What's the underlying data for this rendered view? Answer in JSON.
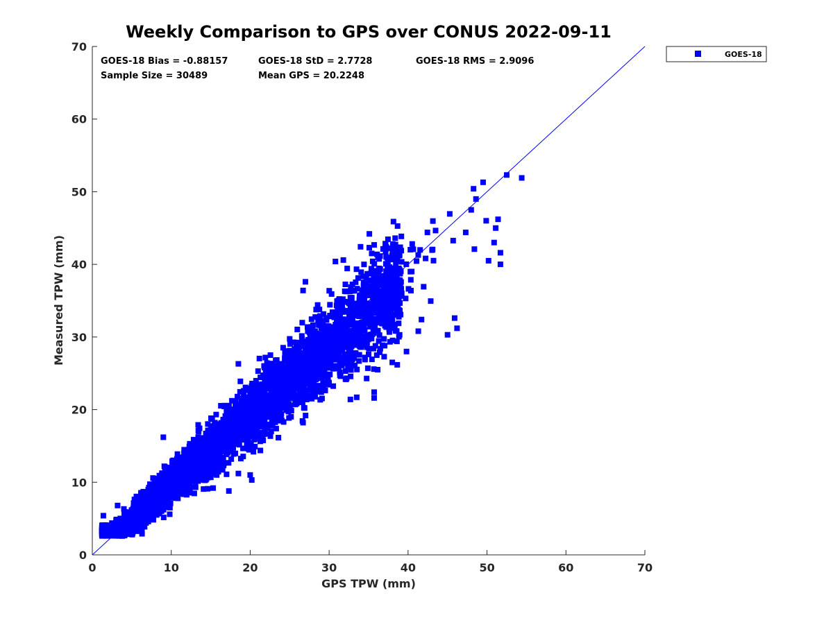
{
  "chart_data": {
    "type": "scatter",
    "title": "Weekly Comparison to GPS over CONUS 2022-09-11",
    "xlabel": "GPS TPW (mm)",
    "ylabel": "Measured TPW (mm)",
    "xlim": [
      0,
      70
    ],
    "ylim": [
      0,
      70
    ],
    "xticks": [
      "0",
      "10",
      "20",
      "30",
      "40",
      "50",
      "60",
      "70"
    ],
    "yticks": [
      "0",
      "10",
      "20",
      "30",
      "40",
      "50",
      "60",
      "70"
    ],
    "grid": false,
    "legend": {
      "position": "outside-top-right",
      "entries": [
        "GOES-18"
      ]
    },
    "reference_line": {
      "label": "1:1 line",
      "from": [
        0,
        0
      ],
      "to": [
        70,
        70
      ]
    },
    "stats": [
      "GOES-18 Bias = -0.88157",
      "GOES-18 StD = 2.7728",
      "GOES-18 RMS = 2.9096",
      "Sample Size = 30489",
      "Mean GPS = 20.2248"
    ],
    "series": [
      {
        "name": "GOES-18",
        "color": "#0000ff",
        "marker": "square",
        "sample_size": 30489,
        "bias": -0.88157,
        "std": 2.7728,
        "rms": 2.9096,
        "mean_x": 20.2248,
        "outliers": [
          [
            52.5,
            52.3
          ],
          [
            54.4,
            51.9
          ],
          [
            49.5,
            51.3
          ],
          [
            48.3,
            50.4
          ],
          [
            48.6,
            49.0
          ],
          [
            48.0,
            47.5
          ],
          [
            49.9,
            46.0
          ],
          [
            51.4,
            46.2
          ],
          [
            51.1,
            45.0
          ],
          [
            50.9,
            43.0
          ],
          [
            51.7,
            41.6
          ],
          [
            51.7,
            40.0
          ],
          [
            50.2,
            40.5
          ],
          [
            48.4,
            42.1
          ],
          [
            47.3,
            44.4
          ],
          [
            35.1,
            44.2
          ],
          [
            35.4,
            41.5
          ],
          [
            30.8,
            40.4
          ],
          [
            31.8,
            40.6
          ],
          [
            27.0,
            37.6
          ],
          [
            26.7,
            36.4
          ],
          [
            45.9,
            32.6
          ],
          [
            46.2,
            31.2
          ],
          [
            45.0,
            30.3
          ],
          [
            41.7,
            32.4
          ],
          [
            41.3,
            30.8
          ],
          [
            37.8,
            31.9
          ],
          [
            38.3,
            31.5
          ],
          [
            39.8,
            28.0
          ],
          [
            38.0,
            26.5
          ],
          [
            34.9,
            25.7
          ],
          [
            35.7,
            22.4
          ],
          [
            35.7,
            21.6
          ],
          [
            32.7,
            21.4
          ],
          [
            33.5,
            21.7
          ],
          [
            29.0,
            22.4
          ],
          [
            26.4,
            26.4
          ],
          [
            21.0,
            25.3
          ],
          [
            18.5,
            26.3
          ],
          [
            20.7,
            20.9
          ],
          [
            25.7,
            20.7
          ],
          [
            26.7,
            18.2
          ],
          [
            18.5,
            11.2
          ],
          [
            20.0,
            11.0
          ],
          [
            20.2,
            10.3
          ],
          [
            17.3,
            8.8
          ],
          [
            15.3,
            9.2
          ],
          [
            14.6,
            9.1
          ],
          [
            10.6,
            8.4
          ],
          [
            2.3,
            3.6
          ],
          [
            1.4,
            5.4
          ],
          [
            3.3,
            2.9
          ],
          [
            6.3,
            2.9
          ],
          [
            3.2,
            6.8
          ],
          [
            9.0,
            16.2
          ]
        ]
      }
    ]
  }
}
